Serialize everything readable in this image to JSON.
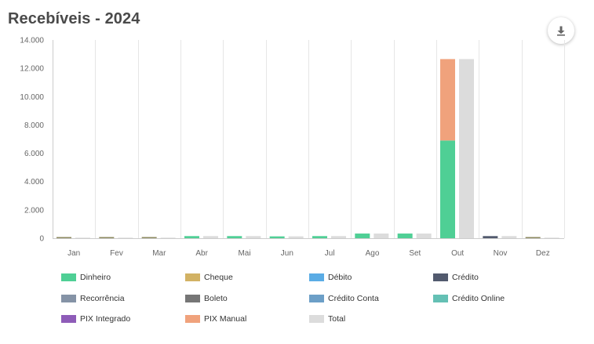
{
  "header": {
    "title": "Recebíveis - 2024"
  },
  "toolbar": {
    "export_icon": "download-icon"
  },
  "colors": {
    "grid": "#e6e6e6",
    "axis": "#cccccc"
  },
  "chart_data": {
    "type": "bar",
    "title": "Recebíveis - 2024",
    "categories": [
      "Jan",
      "Fev",
      "Mar",
      "Abr",
      "Mai",
      "Jun",
      "Jul",
      "Ago",
      "Set",
      "Out",
      "Nov",
      "Dez"
    ],
    "ylim": [
      0,
      14000
    ],
    "yticks": [
      0,
      2000,
      4000,
      6000,
      8000,
      10000,
      12000,
      14000
    ],
    "ytick_labels": [
      "0",
      "2.000",
      "4.000",
      "6.000",
      "8.000",
      "10.000",
      "12.000",
      "14.000"
    ],
    "grid": true,
    "stacked": true,
    "stack_series": [
      "Dinheiro",
      "Cheque",
      "Débito",
      "Crédito",
      "Recorrência",
      "Boleto",
      "Crédito Conta",
      "Crédito Online",
      "PIX Integrado",
      "PIX Manual"
    ],
    "total_series": "Total",
    "series": [
      {
        "name": "Dinheiro",
        "color": "#4fcf95",
        "values": [
          0,
          0,
          0,
          150,
          150,
          130,
          150,
          330,
          330,
          6900,
          0,
          0
        ]
      },
      {
        "name": "Cheque",
        "color": "#d2b264",
        "values": [
          0,
          0,
          0,
          0,
          0,
          0,
          0,
          0,
          0,
          0,
          0,
          0
        ]
      },
      {
        "name": "Débito",
        "color": "#5aace5",
        "values": [
          0,
          0,
          0,
          0,
          0,
          0,
          0,
          0,
          0,
          0,
          0,
          0
        ]
      },
      {
        "name": "Crédito",
        "color": "#525a6e",
        "values": [
          0,
          0,
          0,
          0,
          0,
          0,
          0,
          0,
          0,
          0,
          150,
          0
        ]
      },
      {
        "name": "Recorrência",
        "color": "#8593a6",
        "values": [
          0,
          0,
          0,
          0,
          0,
          0,
          0,
          0,
          0,
          0,
          0,
          0
        ]
      },
      {
        "name": "Boleto",
        "color": "#767676",
        "values": [
          0,
          0,
          0,
          0,
          0,
          0,
          0,
          0,
          0,
          0,
          0,
          0
        ]
      },
      {
        "name": "Crédito Conta",
        "color": "#6c9fc7",
        "values": [
          0,
          0,
          0,
          0,
          0,
          0,
          0,
          0,
          0,
          0,
          0,
          0
        ]
      },
      {
        "name": "Crédito Online",
        "color": "#64c0b4",
        "values": [
          0,
          0,
          0,
          0,
          0,
          0,
          0,
          0,
          0,
          0,
          0,
          0
        ]
      },
      {
        "name": "PIX Integrado",
        "color": "#8e5cb8",
        "values": [
          0,
          0,
          0,
          0,
          0,
          0,
          0,
          0,
          0,
          0,
          0,
          0
        ]
      },
      {
        "name": "PIX Manual",
        "color": "#f0a27c",
        "values": [
          0,
          0,
          0,
          0,
          0,
          0,
          0,
          0,
          0,
          5750,
          0,
          0
        ]
      },
      {
        "name": "Total",
        "color": "#dcdcdc",
        "values": [
          40,
          40,
          40,
          150,
          150,
          130,
          150,
          330,
          330,
          12650,
          150,
          40
        ]
      }
    ],
    "baseline_marks": {
      "color": "#8d8a60",
      "months": [
        "Jan",
        "Fev",
        "Mar",
        "Dez"
      ]
    },
    "legend": [
      "Dinheiro",
      "Cheque",
      "Débito",
      "Crédito",
      "Recorrência",
      "Boleto",
      "Crédito Conta",
      "Crédito Online",
      "PIX Integrado",
      "PIX Manual",
      "Total"
    ]
  }
}
